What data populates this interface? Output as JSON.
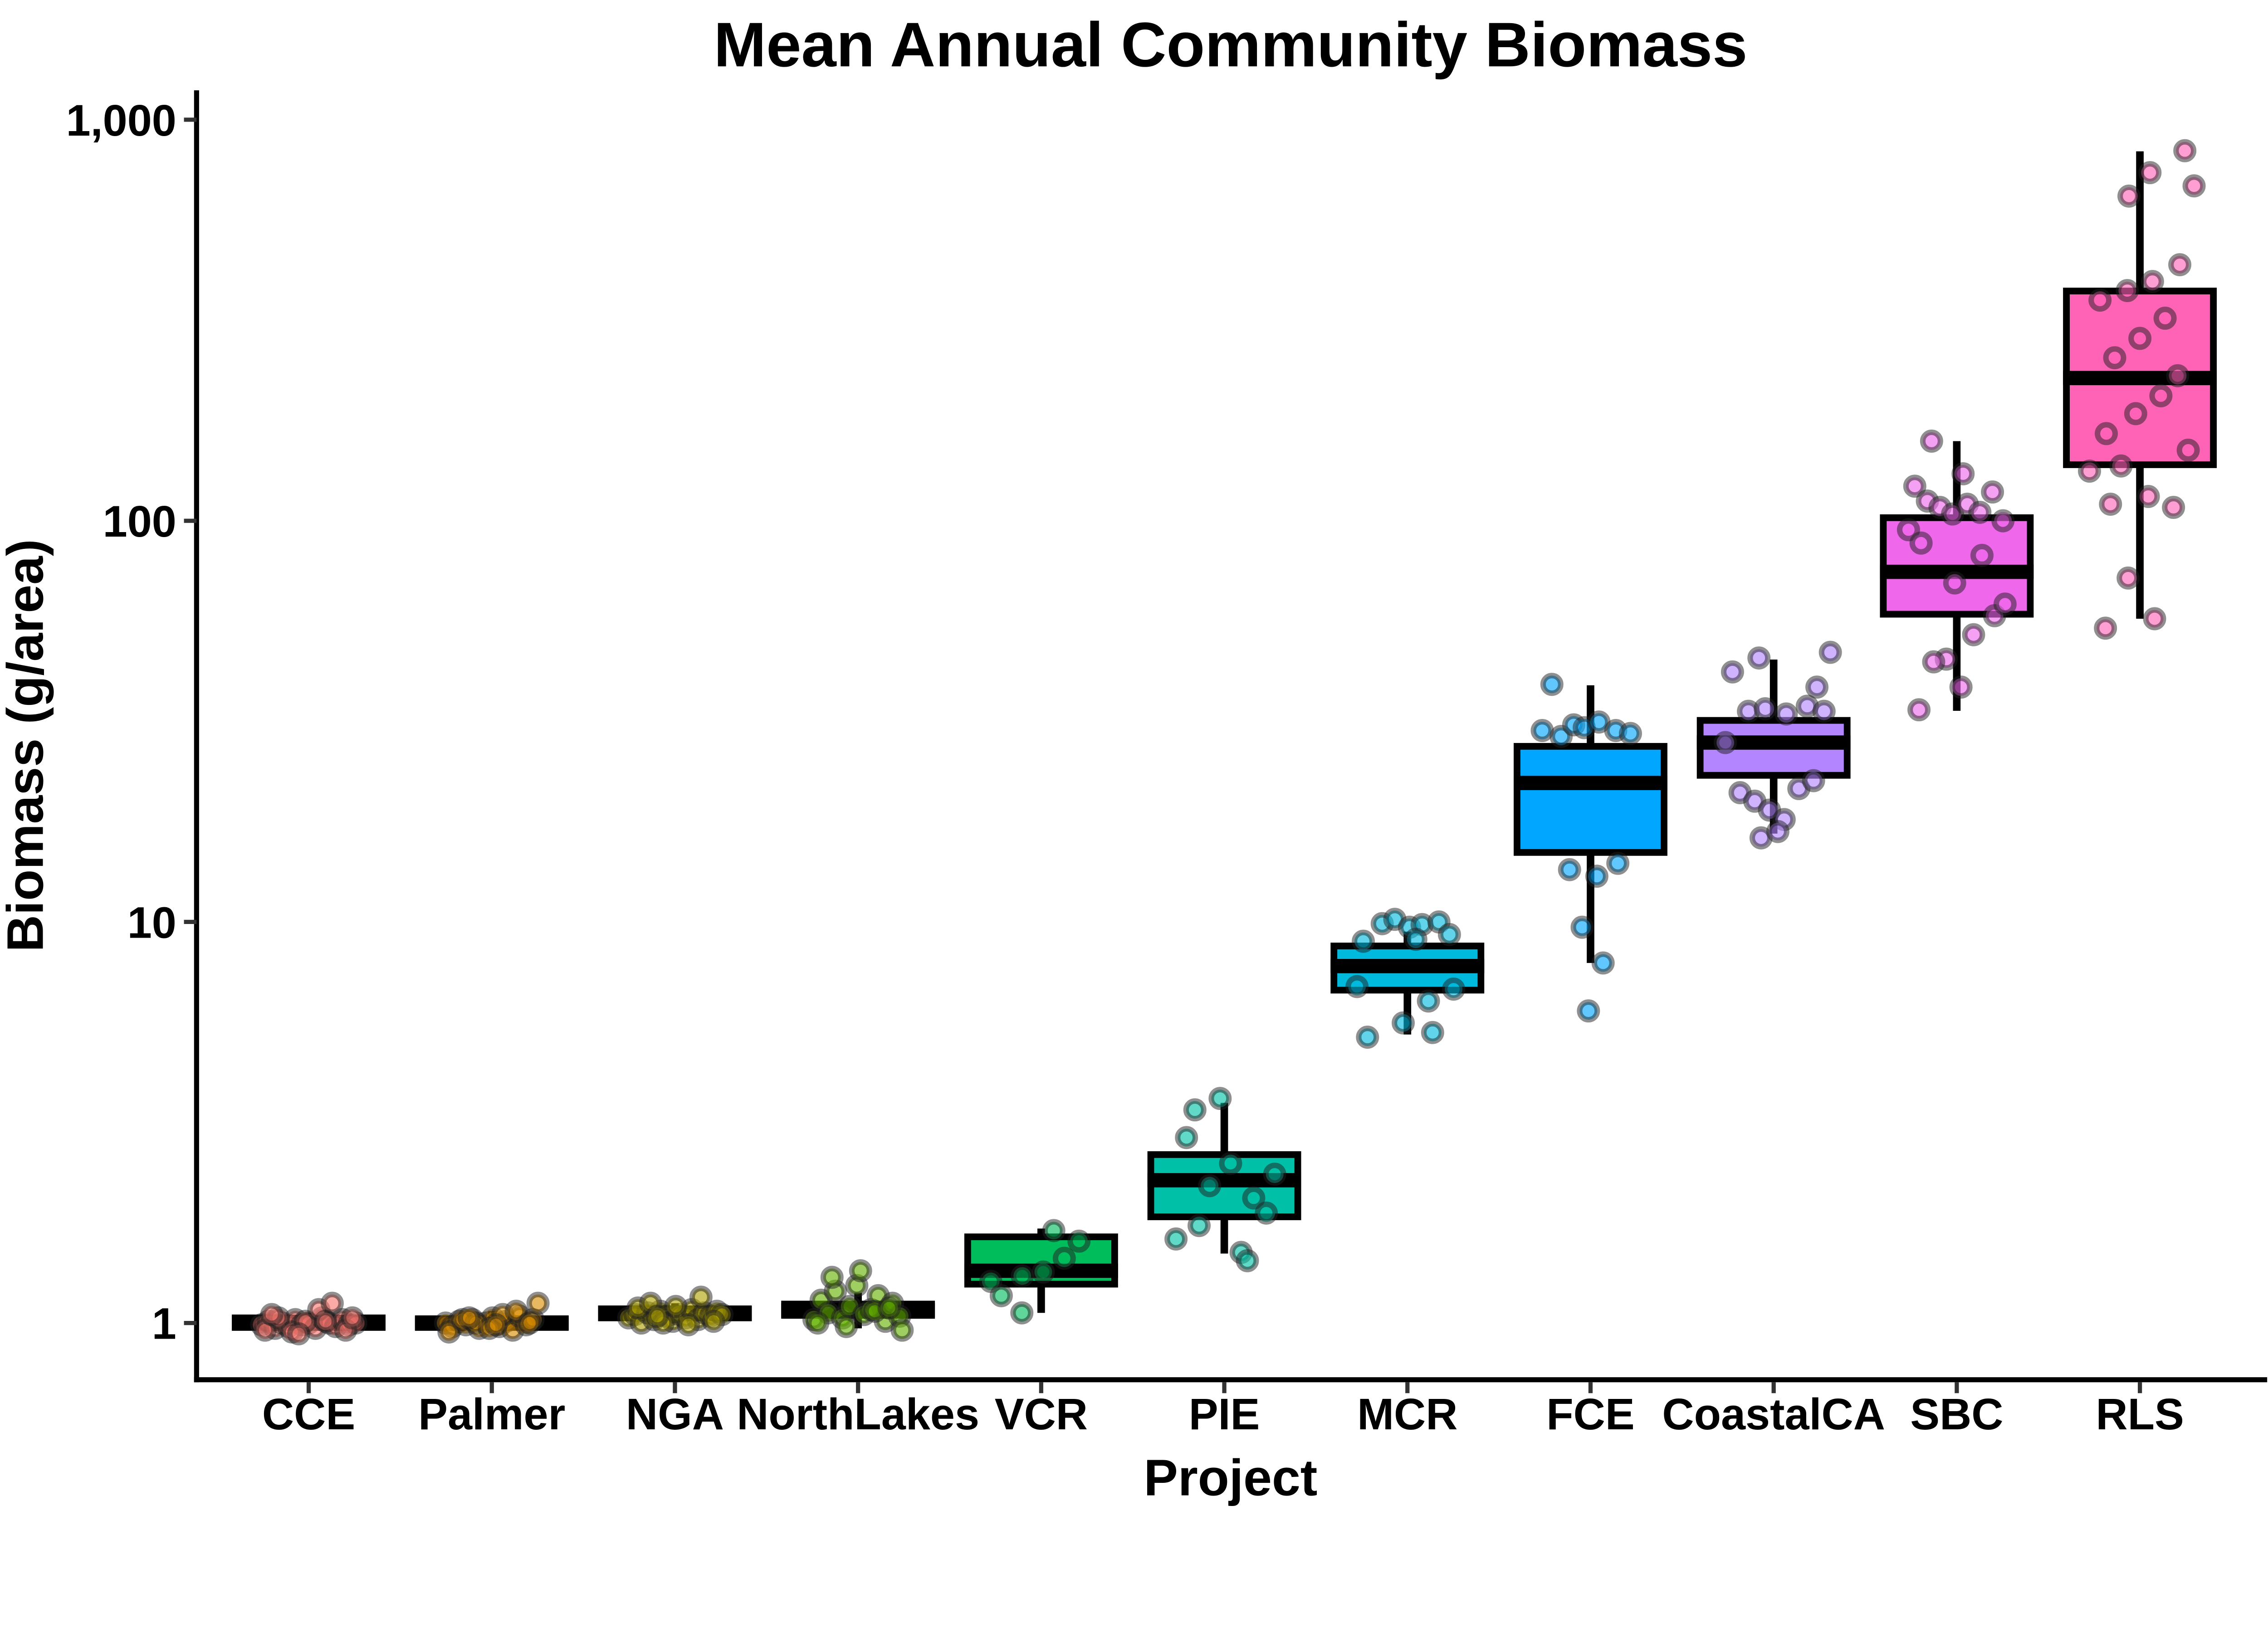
{
  "title": "Mean Annual Community Biomass",
  "background_color": "#FFFFFF",
  "axis_line_color": "#000000",
  "tick_mark_color": "#333333",
  "box_outline_color": "#000000",
  "chart_data": {
    "type": "boxplot-jitter",
    "title": "Mean Annual Community Biomass",
    "xlabel": "Project",
    "ylabel": "Biomass (g/area)",
    "y_scale": "log10",
    "grid": "off",
    "legend": "none",
    "ylim": [
      0.82,
      1150
    ],
    "y_ticks": [
      {
        "label": "1",
        "value": 1
      },
      {
        "label": "10",
        "value": 10
      },
      {
        "label": "100",
        "value": 100
      },
      {
        "label": "1,000",
        "value": 1000
      }
    ],
    "categories": [
      "CCE",
      "Palmer",
      "NGA",
      "NorthLakes",
      "VCR",
      "PIE",
      "MCR",
      "FCE",
      "CoastalCA",
      "SBC",
      "RLS"
    ],
    "series": [
      {
        "name": "CCE",
        "color": "#F8766D",
        "box": {
          "whisker_low": 0.955,
          "q1": 0.975,
          "median": 1.0,
          "q3": 1.03,
          "whisker_high": 1.06
        },
        "points": [
          [
            -112,
            0.99
          ],
          [
            -96,
            1.01
          ],
          [
            -80,
            0.97
          ],
          [
            -64,
            1.0
          ],
          [
            -48,
            0.98
          ],
          [
            -32,
            1.02
          ],
          [
            -16,
            0.99
          ],
          [
            0,
            1.0
          ],
          [
            16,
            0.97
          ],
          [
            32,
            1.03
          ],
          [
            48,
            1.0
          ],
          [
            64,
            0.98
          ],
          [
            80,
            1.02
          ],
          [
            96,
            0.99
          ],
          [
            112,
            1.0
          ],
          [
            -104,
            0.96
          ],
          [
            -72,
            1.03
          ],
          [
            -40,
            0.95
          ],
          [
            -8,
            1.01
          ],
          [
            24,
            1.08
          ],
          [
            56,
            1.12
          ],
          [
            88,
            0.96
          ],
          [
            -88,
            1.05
          ],
          [
            -24,
            0.94
          ],
          [
            40,
            1.01
          ],
          [
            104,
            1.03
          ]
        ]
      },
      {
        "name": "Palmer",
        "color": "#DB8E00",
        "box": {
          "whisker_low": 0.95,
          "q1": 0.975,
          "median": 1.0,
          "q3": 1.025,
          "whisker_high": 1.07
        },
        "points": [
          [
            -110,
            1.0
          ],
          [
            -94,
            0.98
          ],
          [
            -78,
            1.01
          ],
          [
            -62,
            0.99
          ],
          [
            -46,
            1.02
          ],
          [
            -30,
            0.97
          ],
          [
            -14,
            1.0
          ],
          [
            2,
            1.03
          ],
          [
            18,
            0.98
          ],
          [
            34,
            1.01
          ],
          [
            50,
            0.96
          ],
          [
            66,
            1.04
          ],
          [
            82,
            0.99
          ],
          [
            98,
            1.02
          ],
          [
            110,
            1.12
          ],
          [
            -102,
            0.95
          ],
          [
            -70,
            1.02
          ],
          [
            -38,
            1.0
          ],
          [
            -6,
            0.97
          ],
          [
            26,
            1.05
          ],
          [
            58,
            1.07
          ],
          [
            90,
            1.0
          ],
          [
            -54,
            1.03
          ],
          [
            10,
            0.99
          ]
        ]
      },
      {
        "name": "NGA",
        "color": "#AEA200",
        "box": {
          "whisker_low": 1.0,
          "q1": 1.03,
          "median": 1.055,
          "q3": 1.085,
          "whisker_high": 1.12
        },
        "points": [
          [
            -110,
            1.03
          ],
          [
            -95,
            1.05
          ],
          [
            -80,
            1.0
          ],
          [
            -65,
            1.06
          ],
          [
            -50,
            1.02
          ],
          [
            -35,
            1.07
          ],
          [
            -20,
            1.04
          ],
          [
            -5,
            1.01
          ],
          [
            10,
            1.05
          ],
          [
            25,
            1.03
          ],
          [
            40,
            1.08
          ],
          [
            55,
            1.02
          ],
          [
            70,
            1.06
          ],
          [
            85,
            1.04
          ],
          [
            100,
            1.07
          ],
          [
            112,
            1.05
          ],
          [
            -88,
            1.09
          ],
          [
            -58,
            1.12
          ],
          [
            -28,
            1.0
          ],
          [
            2,
            1.1
          ],
          [
            32,
            0.99
          ],
          [
            62,
            1.16
          ],
          [
            92,
            1.01
          ],
          [
            -42,
            1.04
          ]
        ]
      },
      {
        "name": "NorthLakes",
        "color": "#64B200",
        "box": {
          "whisker_low": 0.97,
          "q1": 1.045,
          "median": 1.075,
          "q3": 1.115,
          "whisker_high": 1.19
        },
        "points": [
          [
            -105,
            1.02
          ],
          [
            -88,
            1.14
          ],
          [
            -71,
            1.06
          ],
          [
            -54,
            1.2
          ],
          [
            -37,
            1.03
          ],
          [
            -20,
            1.1
          ],
          [
            -3,
            1.24
          ],
          [
            14,
            1.05
          ],
          [
            31,
            1.08
          ],
          [
            48,
            1.17
          ],
          [
            65,
            1.01
          ],
          [
            82,
            1.12
          ],
          [
            99,
            1.04
          ],
          [
            -96,
            1.0
          ],
          [
            -62,
            1.3
          ],
          [
            -28,
            0.98
          ],
          [
            6,
            1.35
          ],
          [
            40,
            1.07
          ],
          [
            74,
            1.09
          ],
          [
            105,
            0.96
          ]
        ]
      },
      {
        "name": "VCR",
        "color": "#00BD5C",
        "box": {
          "whisker_low": 1.06,
          "q1": 1.25,
          "median": 1.35,
          "q3": 1.64,
          "whisker_high": 1.72
        },
        "points": [
          [
            -46,
            1.06
          ],
          [
            -120,
            1.27
          ],
          [
            -45,
            1.31
          ],
          [
            5,
            1.34
          ],
          [
            -95,
            1.17
          ],
          [
            55,
            1.45
          ],
          [
            90,
            1.6
          ],
          [
            30,
            1.7
          ]
        ]
      },
      {
        "name": "PIE",
        "color": "#00C1A7",
        "box": {
          "whisker_low": 1.49,
          "q1": 1.84,
          "median": 2.27,
          "q3": 2.63,
          "whisker_high": 3.54
        },
        "points": [
          [
            -115,
            1.62
          ],
          [
            -90,
            2.9
          ],
          [
            -60,
            1.75
          ],
          [
            -35,
            2.2
          ],
          [
            -10,
            3.63
          ],
          [
            15,
            2.5
          ],
          [
            40,
            1.5
          ],
          [
            70,
            2.05
          ],
          [
            100,
            1.88
          ],
          [
            120,
            2.35
          ],
          [
            -70,
            3.4
          ],
          [
            55,
            1.43
          ]
        ]
      },
      {
        "name": "MCR",
        "color": "#00BADE",
        "box": {
          "whisker_low": 5.24,
          "q1": 6.76,
          "median": 7.76,
          "q3": 8.71,
          "whisker_high": 9.46
        },
        "points": [
          [
            -95,
            5.16
          ],
          [
            -10,
            5.6
          ],
          [
            50,
            6.35
          ],
          [
            -120,
            6.9
          ],
          [
            110,
            6.8
          ],
          [
            -60,
            9.9
          ],
          [
            -30,
            10.15
          ],
          [
            5,
            9.7
          ],
          [
            35,
            9.85
          ],
          [
            75,
            10.0
          ],
          [
            -105,
            8.95
          ],
          [
            100,
            9.3
          ],
          [
            20,
            9.05
          ],
          [
            60,
            5.3
          ]
        ]
      },
      {
        "name": "FCE",
        "color": "#00A6FF",
        "box": {
          "whisker_low": 7.9,
          "q1": 14.9,
          "median": 22.2,
          "q3": 27.4,
          "whisker_high": 38.9
        },
        "points": [
          [
            -92,
            39.1
          ],
          [
            -115,
            30
          ],
          [
            -70,
            29
          ],
          [
            -40,
            31
          ],
          [
            -15,
            30.5
          ],
          [
            20,
            31.5
          ],
          [
            60,
            30
          ],
          [
            95,
            29.5
          ],
          [
            -50,
            13.5
          ],
          [
            15,
            13
          ],
          [
            65,
            14
          ],
          [
            -20,
            9.7
          ],
          [
            30,
            7.9
          ],
          [
            -5,
            6.0
          ]
        ]
      },
      {
        "name": "CoastalCA",
        "color": "#B385FF",
        "box": {
          "whisker_low": 16.6,
          "q1": 23.2,
          "median": 28.0,
          "q3": 31.8,
          "whisker_high": 45.1
        },
        "points": [
          [
            -98,
            42
          ],
          [
            -35,
            45.5
          ],
          [
            103,
            38.5
          ],
          [
            135,
            47
          ],
          [
            -60,
            33.5
          ],
          [
            -20,
            34
          ],
          [
            30,
            33
          ],
          [
            80,
            34.5
          ],
          [
            120,
            33.5
          ],
          [
            -115,
            28
          ],
          [
            -80,
            21
          ],
          [
            -45,
            20
          ],
          [
            -10,
            19
          ],
          [
            25,
            18
          ],
          [
            60,
            21.5
          ],
          [
            95,
            22.5
          ],
          [
            -30,
            16.2
          ],
          [
            10,
            16.8
          ]
        ]
      },
      {
        "name": "SBC",
        "color": "#EF67EB",
        "box": {
          "whisker_low": 33.6,
          "q1": 58.5,
          "median": 74.6,
          "q3": 101.8,
          "whisker_high": 158
        },
        "points": [
          [
            -60,
            158
          ],
          [
            15,
            131
          ],
          [
            -100,
            122
          ],
          [
            -70,
            112
          ],
          [
            -40,
            108
          ],
          [
            -10,
            104
          ],
          [
            25,
            110
          ],
          [
            55,
            105
          ],
          [
            85,
            118
          ],
          [
            110,
            100
          ],
          [
            -115,
            95
          ],
          [
            -85,
            88
          ],
          [
            60,
            82
          ],
          [
            -25,
            45.2
          ],
          [
            -55,
            44.5
          ],
          [
            10,
            38.5
          ],
          [
            -90,
            33.8
          ],
          [
            40,
            52
          ],
          [
            90,
            58
          ],
          [
            -5,
            70
          ],
          [
            115,
            62
          ]
        ]
      },
      {
        "name": "RLS",
        "color": "#FF63B6",
        "box": {
          "whisker_low": 57,
          "q1": 138,
          "median": 227,
          "q3": 374,
          "whisker_high": 834
        },
        "points": [
          [
            107,
            837
          ],
          [
            24,
            738
          ],
          [
            129,
            684
          ],
          [
            -26,
            645
          ],
          [
            95,
            435
          ],
          [
            -120,
            133
          ],
          [
            -45,
            137
          ],
          [
            20,
            115
          ],
          [
            80,
            108
          ],
          [
            115,
            150
          ],
          [
            -80,
            165
          ],
          [
            -10,
            185
          ],
          [
            50,
            205
          ],
          [
            -82,
            54
          ],
          [
            -28,
            72
          ],
          [
            35,
            57
          ],
          [
            90,
            230
          ],
          [
            -60,
            255
          ],
          [
            0,
            285
          ],
          [
            60,
            320
          ],
          [
            -95,
            355
          ],
          [
            -30,
            375
          ],
          [
            30,
            395
          ],
          [
            -70,
            110
          ]
        ]
      }
    ]
  }
}
